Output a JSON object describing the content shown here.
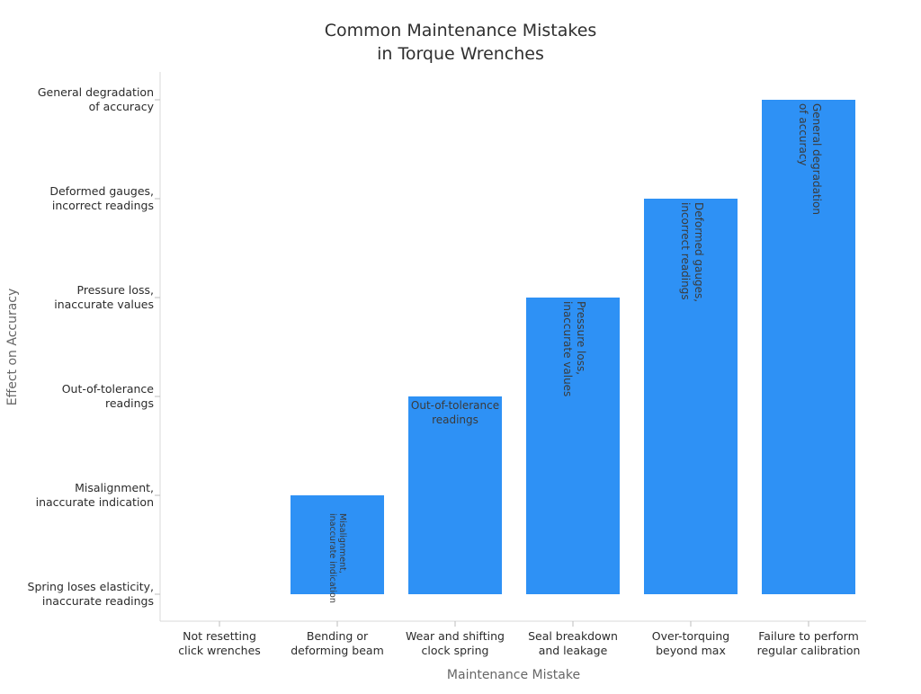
{
  "chart_data": {
    "type": "bar",
    "title": [
      "Common Maintenance Mistakes",
      "in Torque Wrenches"
    ],
    "xlabel": "Maintenance Mistake",
    "ylabel": "Effect on Accuracy",
    "categories": [
      [
        "Not resetting",
        "click wrenches"
      ],
      [
        "Bending or",
        "deforming beam"
      ],
      [
        "Wear and shifting",
        "clock spring"
      ],
      [
        "Seal breakdown",
        "and leakage"
      ],
      [
        "Over-torquing",
        "beyond max"
      ],
      [
        "Failure to perform",
        "regular calibration"
      ]
    ],
    "y_categories": [
      [
        "Spring loses elasticity,",
        "inaccurate readings"
      ],
      [
        "Misalignment,",
        "inaccurate indication"
      ],
      [
        "Out-of-tolerance",
        "readings"
      ],
      [
        "Pressure loss,",
        "inaccurate values"
      ],
      [
        "Deformed gauges,",
        "incorrect readings"
      ],
      [
        "General degradation",
        "of accuracy"
      ]
    ],
    "values": [
      0,
      1,
      2,
      3,
      4,
      5
    ],
    "data_labels": [
      null,
      [
        "Misalignment,",
        "inaccurate indication"
      ],
      [
        "Out-of-tolerance",
        "readings"
      ],
      [
        "Pressure loss,",
        "inaccurate values"
      ],
      [
        "Deformed gauges,",
        "incorrect readings"
      ],
      [
        "General degradation",
        "of accuracy"
      ]
    ],
    "label_orientation": [
      "none",
      "rotated-cw",
      "horizontal",
      "rotated-cw",
      "rotated-cw",
      "rotated-cw"
    ],
    "bar_color": "#2e91f5",
    "axis_color": "#d9d9d9",
    "grid": false,
    "legend": "none"
  }
}
